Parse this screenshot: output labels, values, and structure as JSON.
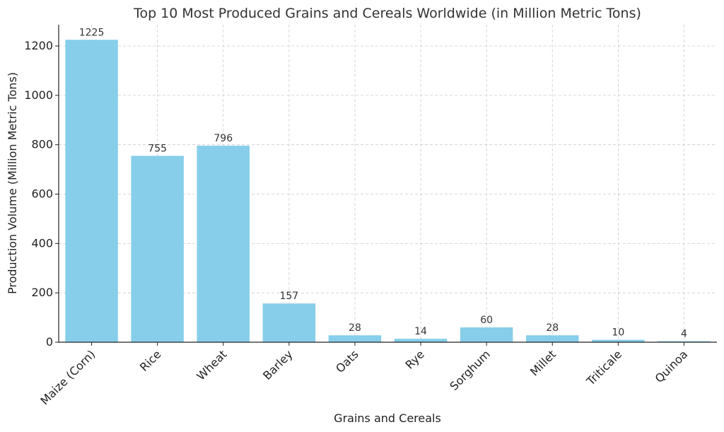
{
  "chart_data": {
    "type": "bar",
    "title": "Top 10 Most Produced Grains and Cereals Worldwide (in Million Metric Tons)",
    "xlabel": "Grains and Cereals",
    "ylabel": "Production Volume (Million Metric Tons)",
    "categories": [
      "Maize (Corn)",
      "Rice",
      "Wheat",
      "Barley",
      "Oats",
      "Rye",
      "Sorghum",
      "Millet",
      "Triticale",
      "Quinoa"
    ],
    "values": [
      1225,
      755,
      796,
      157,
      28,
      14,
      60,
      28,
      10,
      4
    ],
    "data_labels": [
      "1225",
      "755",
      "796",
      "157",
      "28",
      "14",
      "60",
      "28",
      "10",
      "4"
    ],
    "ylim": [
      0,
      1286
    ],
    "yticks": [
      0,
      200,
      400,
      600,
      800,
      1000,
      1200
    ],
    "ytick_labels": [
      "0",
      "200",
      "400",
      "600",
      "800",
      "1000",
      "1200"
    ],
    "grid": true,
    "bar_color": "#87CEEB"
  }
}
